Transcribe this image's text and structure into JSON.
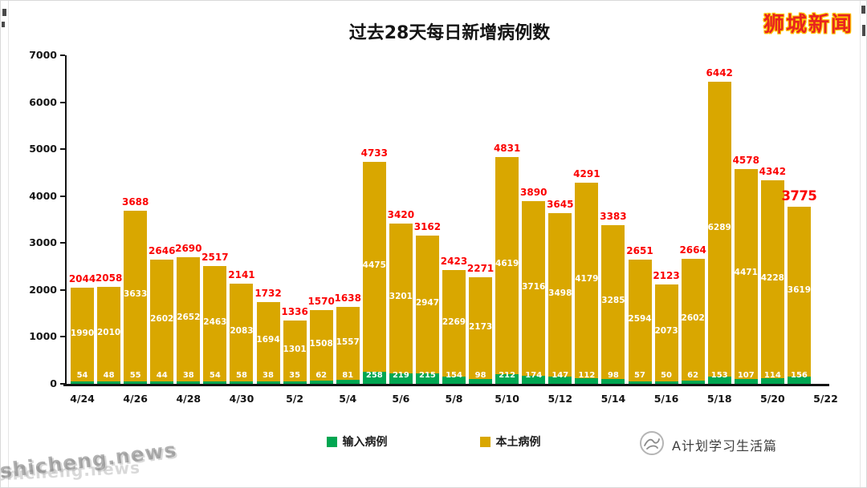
{
  "page": {
    "site_logo": "狮城新闻",
    "watermark": "shicheng.news",
    "brand_name": "A计划学习生活篇",
    "brand_logo_icon": "circle-swirl-logo"
  },
  "chart_data": {
    "type": "bar",
    "stacked": true,
    "title": "过去28天每日新增病例数",
    "x_tick_labels": [
      "4/24",
      "4/26",
      "4/28",
      "4/30",
      "5/2",
      "5/4",
      "5/6",
      "5/8",
      "5/10",
      "5/12",
      "5/14",
      "5/16",
      "5/18",
      "5/20",
      "5/22"
    ],
    "y_ticks": [
      0,
      1000,
      2000,
      3000,
      4000,
      5000,
      6000,
      7000
    ],
    "ylim": [
      0,
      7000
    ],
    "grid": false,
    "legend_position": "bottom",
    "total_label_color": "#FB0000",
    "series": [
      {
        "name": "输入病例",
        "color": "#00A651",
        "values": [
          54,
          48,
          55,
          44,
          38,
          54,
          58,
          38,
          35,
          62,
          81,
          258,
          219,
          215,
          154,
          98,
          212,
          174,
          147,
          112,
          98,
          57,
          50,
          62,
          153,
          107,
          114,
          156
        ]
      },
      {
        "name": "本土病例",
        "color": "#D9A700",
        "values": [
          1990,
          2010,
          3633,
          2602,
          2652,
          2463,
          2083,
          1694,
          1301,
          1508,
          1557,
          4475,
          3201,
          2947,
          2269,
          2173,
          4619,
          3716,
          3498,
          4179,
          3285,
          2594,
          2073,
          2602,
          6289,
          4471,
          4228,
          3619
        ]
      }
    ],
    "totals": [
      2044,
      2058,
      3688,
      2646,
      2690,
      2517,
      2141,
      1732,
      1336,
      1570,
      1638,
      4733,
      3420,
      3162,
      2423,
      2271,
      4831,
      3890,
      3645,
      4291,
      3383,
      2651,
      2123,
      2664,
      6442,
      4578,
      4342,
      3775
    ],
    "highlight_last_total": true
  }
}
